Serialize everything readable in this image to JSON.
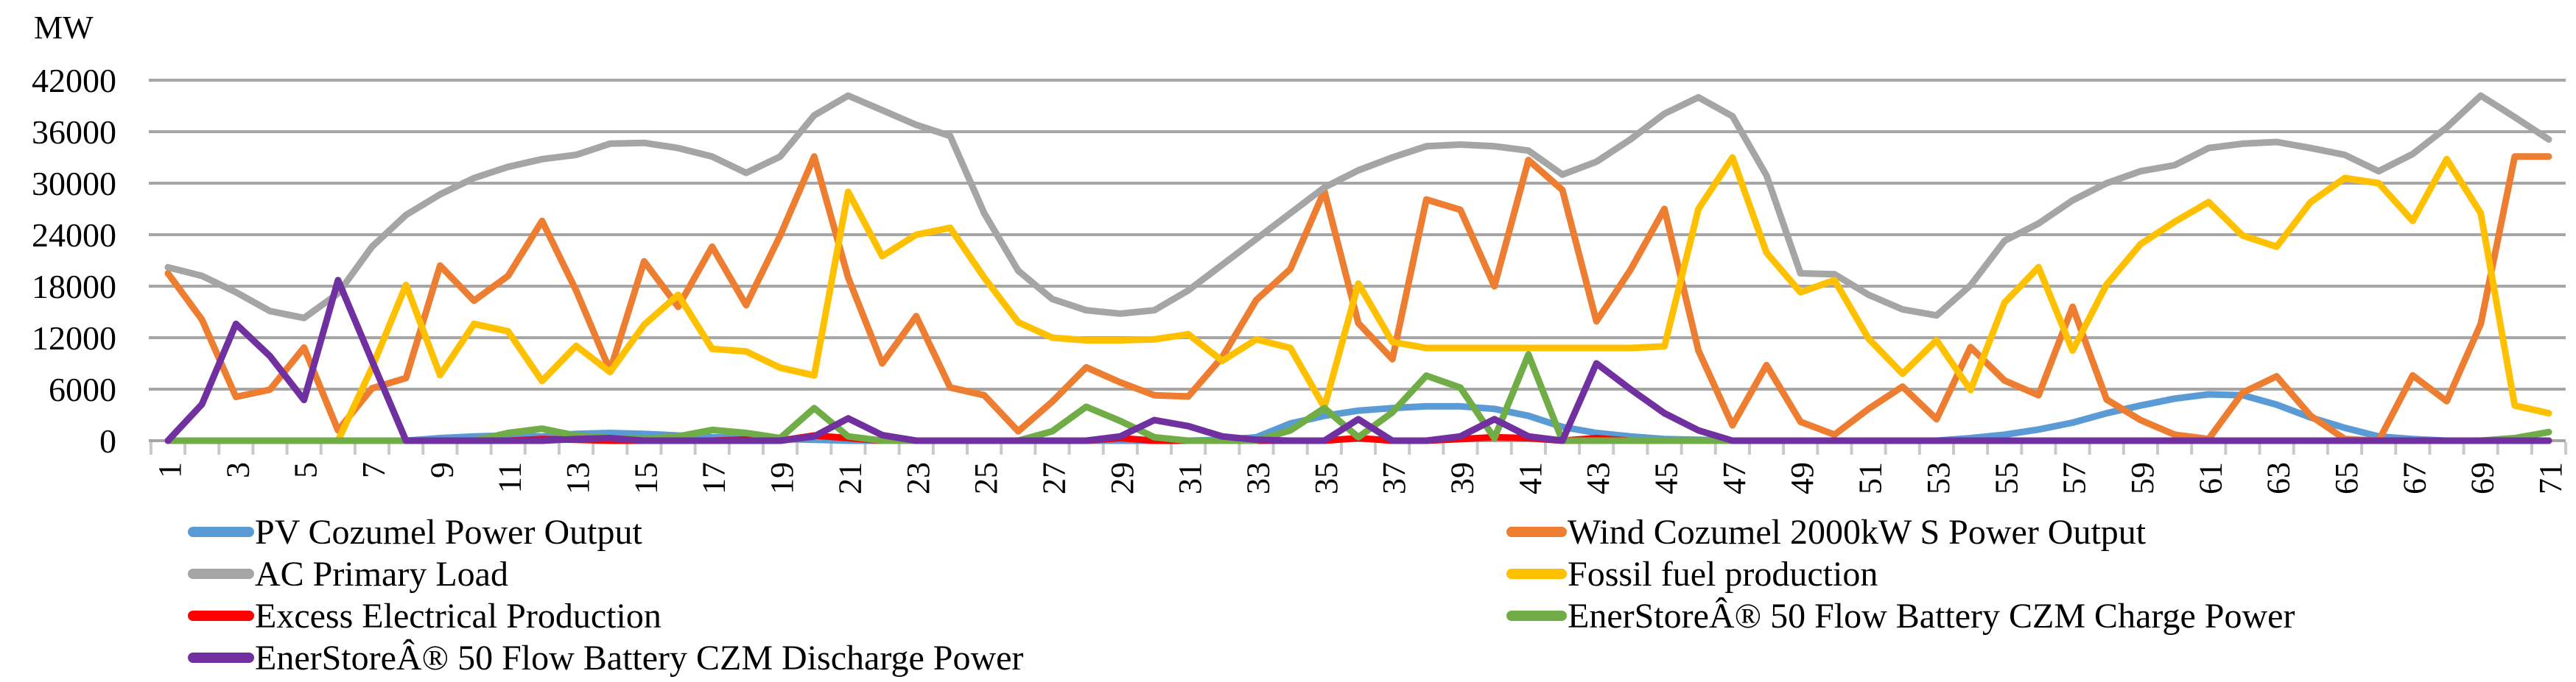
{
  "chart_data": {
    "type": "line",
    "title": "",
    "ylabel": "MW",
    "xlabel": "",
    "grid": "horizontal-major",
    "legend_position": "bottom-two-columns",
    "y_axis": {
      "min": 0,
      "max": 42000,
      "step": 6000,
      "tick_labels": [
        "42000",
        "36000",
        "30000",
        "24000",
        "18000",
        "12000",
        "6000",
        "0"
      ]
    },
    "x_axis": {
      "n_points": 71,
      "label_every": 2,
      "tick_labels": [
        "1",
        "3",
        "5",
        "7",
        "9",
        "11",
        "13",
        "15",
        "17",
        "19",
        "21",
        "23",
        "25",
        "27",
        "29",
        "31",
        "33",
        "35",
        "37",
        "39",
        "41",
        "43",
        "45",
        "47",
        "49",
        "51",
        "53",
        "55",
        "57",
        "59",
        "61",
        "63",
        "65",
        "67",
        "69",
        "71"
      ]
    },
    "series": [
      {
        "name": "PV Cozumel Power Output",
        "color": "#5B9BD5",
        "values": [
          0,
          0,
          0,
          0,
          0,
          0,
          0,
          0,
          300,
          500,
          600,
          500,
          800,
          900,
          800,
          600,
          400,
          300,
          200,
          100,
          0,
          0,
          0,
          0,
          0,
          0,
          0,
          0,
          0,
          0,
          0,
          100,
          400,
          2000,
          2900,
          3500,
          3800,
          4000,
          4000,
          3700,
          2900,
          1600,
          900,
          500,
          200,
          100,
          0,
          0,
          0,
          0,
          0,
          0,
          0,
          300,
          700,
          1300,
          2100,
          3200,
          4100,
          4900,
          5400,
          5300,
          4200,
          2700,
          1500,
          500,
          200,
          0,
          0,
          0,
          0
        ]
      },
      {
        "name": "Wind Cozumel 2000kW S Power Output",
        "color": "#ED7D31",
        "values": [
          19500,
          14100,
          5100,
          5950,
          10850,
          1200,
          6100,
          7300,
          20400,
          16300,
          19200,
          25600,
          17500,
          8150,
          20900,
          15600,
          22600,
          15800,
          23900,
          33100,
          19000,
          9000,
          14500,
          6200,
          5300,
          1100,
          4550,
          8550,
          6800,
          5300,
          5150,
          9750,
          16400,
          20000,
          29100,
          13700,
          9500,
          28100,
          26900,
          18000,
          32700,
          29200,
          13900,
          19900,
          27000,
          10500,
          1800,
          8800,
          2200,
          700,
          3700,
          6300,
          2500,
          10900,
          7000,
          5300,
          15600,
          4800,
          2400,
          700,
          200,
          5600,
          7500,
          2900,
          200,
          0,
          7600,
          4600,
          13600,
          33100,
          33100
        ]
      },
      {
        "name": "AC Primary Load",
        "color": "#A5A5A5",
        "values": [
          20200,
          19200,
          17300,
          15100,
          14300,
          17150,
          22600,
          26300,
          28700,
          30600,
          31900,
          32800,
          33300,
          34600,
          34700,
          34100,
          33100,
          31200,
          33100,
          37900,
          40200,
          38500,
          36800,
          35500,
          26500,
          19800,
          16500,
          15200,
          14800,
          15200,
          17500,
          20500,
          23500,
          26500,
          29500,
          31500,
          33000,
          34300,
          34500,
          34300,
          33800,
          31000,
          32500,
          35100,
          38100,
          40000,
          37800,
          30900,
          19500,
          19400,
          17000,
          15300,
          14600,
          18100,
          23300,
          25300,
          28000,
          30000,
          31400,
          32100,
          34100,
          34600,
          34800,
          34100,
          33300,
          31400,
          33400,
          36500,
          40200,
          37700,
          35100
        ]
      },
      {
        "name": "Fossil fuel production",
        "color": "#FFC000",
        "values": [
          0,
          0,
          0,
          0,
          0,
          0,
          8500,
          18150,
          7650,
          13600,
          12750,
          6950,
          11050,
          8000,
          13500,
          17000,
          10700,
          10400,
          8500,
          7600,
          29000,
          21500,
          24000,
          24800,
          19000,
          13800,
          12000,
          11700,
          11700,
          11800,
          12400,
          9300,
          11800,
          10800,
          3900,
          18300,
          11500,
          10800,
          10800,
          10800,
          10800,
          10800,
          10800,
          10800,
          11000,
          27000,
          33000,
          21900,
          17300,
          18700,
          11900,
          7800,
          11700,
          5900,
          16100,
          20200,
          10500,
          18200,
          22900,
          25500,
          27800,
          23900,
          22600,
          27800,
          30600,
          30000,
          25600,
          32800,
          26500,
          4100,
          3200
        ]
      },
      {
        "name": "Excess Electrical Production",
        "color": "#FF0000",
        "values": [
          0,
          0,
          0,
          0,
          0,
          0,
          0,
          0,
          0,
          0,
          0,
          200,
          100,
          0,
          0,
          0,
          0,
          150,
          0,
          600,
          300,
          0,
          0,
          0,
          0,
          0,
          0,
          0,
          300,
          0,
          0,
          0,
          0,
          0,
          0,
          300,
          0,
          0,
          200,
          400,
          300,
          0,
          300,
          0,
          0,
          0,
          0,
          0,
          0,
          0,
          0,
          0,
          0,
          0,
          0,
          0,
          0,
          0,
          0,
          0,
          0,
          0,
          0,
          0,
          0,
          0,
          0,
          0,
          0,
          0,
          0
        ]
      },
      {
        "name": "EnerStoreÂ® 50 Flow Battery CZM Charge Power",
        "color": "#70AD47",
        "values": [
          0,
          0,
          0,
          0,
          0,
          0,
          0,
          0,
          0,
          0,
          900,
          1400,
          600,
          300,
          200,
          500,
          1250,
          900,
          300,
          3800,
          500,
          0,
          0,
          0,
          0,
          0,
          1100,
          3950,
          2300,
          400,
          0,
          0,
          0,
          1200,
          3800,
          400,
          3300,
          7580,
          6180,
          300,
          10050,
          0,
          0,
          0,
          0,
          0,
          0,
          0,
          0,
          0,
          0,
          0,
          0,
          0,
          0,
          0,
          0,
          0,
          0,
          0,
          0,
          0,
          0,
          0,
          0,
          0,
          0,
          0,
          0,
          300,
          1000
        ]
      },
      {
        "name": "EnerStoreÂ® 50 Flow Battery CZM Discharge Power",
        "color": "#7030A0",
        "values": [
          0,
          4250,
          13600,
          9850,
          4750,
          18700,
          9300,
          0,
          0,
          0,
          0,
          0,
          200,
          300,
          0,
          0,
          0,
          0,
          0,
          500,
          2600,
          650,
          0,
          0,
          0,
          0,
          0,
          0,
          500,
          2400,
          1700,
          500,
          100,
          0,
          0,
          2500,
          0,
          0,
          500,
          2500,
          500,
          0,
          9000,
          6000,
          3200,
          1200,
          0,
          0,
          0,
          0,
          0,
          0,
          0,
          0,
          0,
          0,
          0,
          0,
          0,
          0,
          0,
          0,
          0,
          0,
          0,
          0,
          0,
          0,
          0,
          0,
          0
        ]
      }
    ],
    "legend_columns": [
      [
        0,
        2,
        4,
        6
      ],
      [
        1,
        3,
        5
      ]
    ]
  }
}
